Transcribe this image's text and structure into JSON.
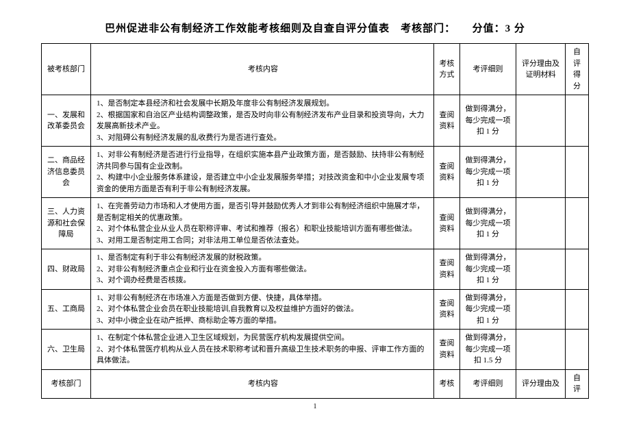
{
  "title": "巴州促进非公有制经济工作效能考核细则及自查自评分值表　考核部门：　　分值：3 分",
  "headers": {
    "dept": "被考核部门",
    "content": "考核内容",
    "method": "考核方式",
    "criteria": "考评细则",
    "reason": "评分理由及证明材料",
    "score": "自评得分"
  },
  "rows": [
    {
      "dept": "一、发展和改革委员会",
      "content": "1、是否制定本县经济和社会发展中长期及年度非公有制经济发展规划。\n2、根据国家和自治区产业结构调整政策，是否及时向非公有制经济发布产业目录和投资导向，大力发展高新技术产业。\n3、对阻碍公有制经济发展的乱收费行为是否进行查处。",
      "method": "查阅资料",
      "criteria": "做到得满分，每少完成一项扣 1 分"
    },
    {
      "dept": "二、商品经济信息委员会",
      "content": "1、对非公有制经济是否进行行业指导，在组织实施本县产业政策方面，是否鼓励、扶持非公有制经济共同参与国有企业改制。\n2、构建中小企业服务体系建设，是否建立中小企业发展服务举措；对技改资金和中小企业发展专项资金的使用方面是否有利于非公有制经济发展。",
      "method": "查阅资料",
      "criteria": "做到得满分，每少完成一项扣 1 分"
    },
    {
      "dept": "三、人力资源和社会保障局",
      "content": "1、在完善劳动力市场和人才使用方面，是否引导并鼓励优秀人才到非公有制经济组织中施展才华，是否制定相关的优惠政策。\n2、对个体私营企业从业人员在职称评审、考试和推荐（报名）和职业技能培训方面有哪些做法。\n3、对用工是否制定用工合同；对非法用工单位是否依法查处。",
      "method": "查阅资料",
      "criteria": "做到得满分，每少完成一项扣 1 分"
    },
    {
      "dept": "四、财政局",
      "content": "1、是否制定有利于非公有制经济发展的财税政策。\n2、对非公有制经济重点企业和行业在资金投入方面有哪些做法。\n3、对个调办经费是否核拨。",
      "method": "查阅资料",
      "criteria": "做到得满分，每少完成一项扣 1 分"
    },
    {
      "dept": "五、工商局",
      "content": "1、对非公有制经济在市场准入方面是否做到方便、快捷，具体举措。\n2、对个体私营企业会员在职业技能培训,自我教育以及权益维护方面好的做法。\n3、对中小微企业在动产抵押、商标助企等方面的举措。",
      "method": "查阅资料",
      "criteria": "做到得满分，每少完成一项扣 1 分"
    },
    {
      "dept": "六、卫生局",
      "content": "1、在制定个体私营企业进入卫生区域规划，为民营医疗机构发展提供空间。\n2、对个体私营医疗机构从业人员在技术职称考试和晋升高级卫生技术职务的申报、评审工作方面的具体做法。",
      "method": "查阅资料",
      "criteria": "做到得满分，每少完成一项扣 1.5 分"
    }
  ],
  "footer": {
    "dept": "考核部门",
    "content": "考核内容",
    "method": "考核",
    "criteria": "考评细则",
    "reason": "评分理由及",
    "score": "自评"
  },
  "page_number": "1"
}
